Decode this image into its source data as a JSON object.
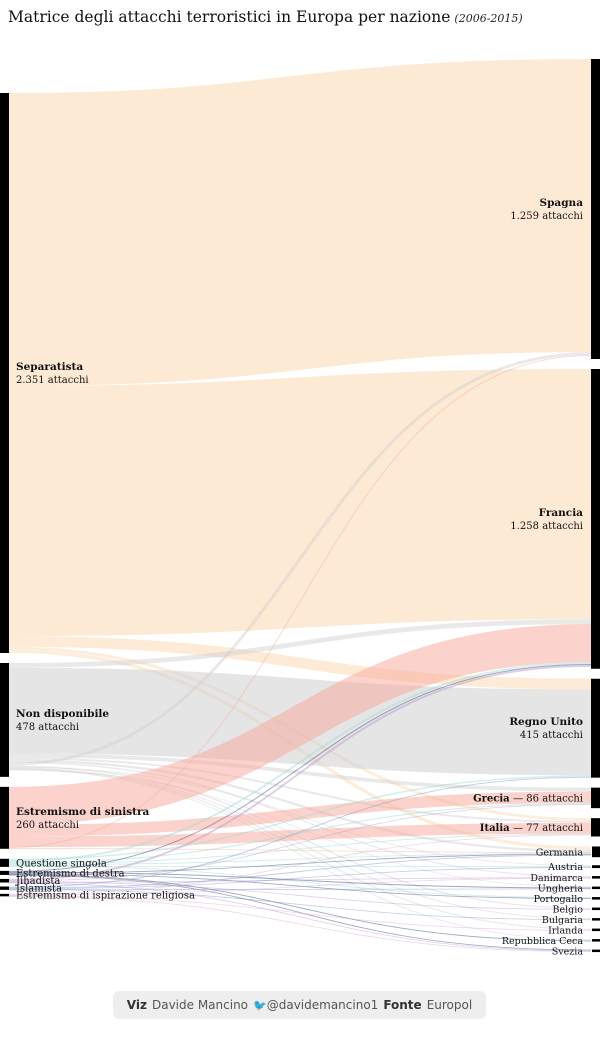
{
  "title": {
    "main": "Matrice degli attacchi terroristici in Europa per nazione",
    "sub": "(2006-2015)"
  },
  "footer": {
    "viz_label": "Viz",
    "viz_author": "Davide Mancino",
    "twitter_handle": "@davidemancino1",
    "source_label": "Fonte",
    "source_value": "Europol",
    "twitter_icon": "twitter-bird-icon"
  },
  "chart_data": {
    "type": "sankey",
    "title": "Matrice degli attacchi terroristici in Europa per nazione",
    "subtitle": "(2006-2015)",
    "value_unit": "attacchi",
    "sources": [
      {
        "name": "Separatista",
        "value": 2351,
        "label": "2.351 attacchi",
        "color": "#fbd8b0"
      },
      {
        "name": "Non disponibile",
        "value": 478,
        "label": "478 attacchi",
        "color": "#cfcfcf"
      },
      {
        "name": "Estremismo di sinistra",
        "value": 260,
        "label": "260 attacchi",
        "color": "#f7a79a"
      },
      {
        "name": "Questione singola",
        "value": 34,
        "color": "#9ed9d2"
      },
      {
        "name": "Estremismo di destra",
        "value": 17,
        "color": "#2a3d6e"
      },
      {
        "name": "Jihadista",
        "value": 15,
        "color": "#b793cc"
      },
      {
        "name": "Islamista",
        "value": 14,
        "color": "#7b8fc4"
      },
      {
        "name": "Estremismo di ispirazione religiosa",
        "value": 6,
        "color": "#d9a3cf"
      }
    ],
    "targets": [
      {
        "name": "Spagna",
        "value": 1259,
        "label": "1.259 attacchi"
      },
      {
        "name": "Francia",
        "value": 1258,
        "label": "1.258 attacchi"
      },
      {
        "name": "Regno Unito",
        "value": 415,
        "label": "415 attacchi"
      },
      {
        "name": "Grecia",
        "value": 86,
        "label": "— 86 attacchi"
      },
      {
        "name": "Italia",
        "value": 77,
        "label": "— 77 attacchi"
      },
      {
        "name": "Germania",
        "value": 45
      },
      {
        "name": "Austria",
        "value": 12
      },
      {
        "name": "Danimarca",
        "value": 10
      },
      {
        "name": "Ungheria",
        "value": 9
      },
      {
        "name": "Portogallo",
        "value": 8
      },
      {
        "name": "Belgio",
        "value": 7
      },
      {
        "name": "Bulgaria",
        "value": 6
      },
      {
        "name": "Irlanda",
        "value": 5
      },
      {
        "name": "Repubblica Ceca",
        "value": 4
      },
      {
        "name": "Svezia",
        "value": 3
      }
    ],
    "flows": [
      {
        "source": "Separatista",
        "target": "Spagna",
        "value": 1230
      },
      {
        "source": "Separatista",
        "target": "Francia",
        "value": 1050
      },
      {
        "source": "Separatista",
        "target": "Regno Unito",
        "value": 45
      },
      {
        "source": "Separatista",
        "target": "Italia",
        "value": 12
      },
      {
        "source": "Separatista",
        "target": "Germania",
        "value": 14
      },
      {
        "source": "Non disponibile",
        "target": "Francia",
        "value": 20
      },
      {
        "source": "Non disponibile",
        "target": "Regno Unito",
        "value": 360
      },
      {
        "source": "Non disponibile",
        "target": "Grecia",
        "value": 16
      },
      {
        "source": "Non disponibile",
        "target": "Italia",
        "value": 8
      },
      {
        "source": "Non disponibile",
        "target": "Germania",
        "value": 10
      },
      {
        "source": "Non disponibile",
        "target": "Danimarca",
        "value": 5
      },
      {
        "source": "Non disponibile",
        "target": "Spagna",
        "value": 12
      },
      {
        "source": "Non disponibile",
        "target": "Belgio",
        "value": 4
      },
      {
        "source": "Non disponibile",
        "target": "Austria",
        "value": 4
      },
      {
        "source": "Non disponibile",
        "target": "Bulgaria",
        "value": 3
      },
      {
        "source": "Non disponibile",
        "target": "Irlanda",
        "value": 3
      },
      {
        "source": "Non disponibile",
        "target": "Repubblica Ceca",
        "value": 2
      },
      {
        "source": "Non disponibile",
        "target": "Ungheria",
        "value": 3
      },
      {
        "source": "Estremismo di sinistra",
        "target": "Francia",
        "value": 160
      },
      {
        "source": "Estremismo di sinistra",
        "target": "Grecia",
        "value": 48
      },
      {
        "source": "Estremismo di sinistra",
        "target": "Italia",
        "value": 45
      },
      {
        "source": "Estremismo di sinistra",
        "target": "Spagna",
        "value": 4
      },
      {
        "source": "Estremismo di sinistra",
        "target": "Germania",
        "value": 3
      },
      {
        "source": "Questione singola",
        "target": "Regno Unito",
        "value": 6
      },
      {
        "source": "Questione singola",
        "target": "Francia",
        "value": 8
      },
      {
        "source": "Questione singola",
        "target": "Grecia",
        "value": 5
      },
      {
        "source": "Questione singola",
        "target": "Italia",
        "value": 4
      },
      {
        "source": "Questione singola",
        "target": "Germania",
        "value": 4
      },
      {
        "source": "Questione singola",
        "target": "Portogallo",
        "value": 3
      },
      {
        "source": "Questione singola",
        "target": "Austria",
        "value": 4
      },
      {
        "source": "Estremismo di destra",
        "target": "Francia",
        "value": 4
      },
      {
        "source": "Estremismo di destra",
        "target": "Ungheria",
        "value": 4
      },
      {
        "source": "Estremismo di destra",
        "target": "Germania",
        "value": 3
      },
      {
        "source": "Estremismo di destra",
        "target": "Portogallo",
        "value": 3
      },
      {
        "source": "Estremismo di destra",
        "target": "Repubblica Ceca",
        "value": 2
      },
      {
        "source": "Estremismo di destra",
        "target": "Svezia",
        "value": 1
      },
      {
        "source": "Jihadista",
        "target": "Francia",
        "value": 8
      },
      {
        "source": "Jihadista",
        "target": "Grecia",
        "value": 2
      },
      {
        "source": "Jihadista",
        "target": "Belgio",
        "value": 2
      },
      {
        "source": "Jihadista",
        "target": "Danimarca",
        "value": 2
      },
      {
        "source": "Jihadista",
        "target": "Svezia",
        "value": 1
      },
      {
        "source": "Islamista",
        "target": "Regno Unito",
        "value": 4
      },
      {
        "source": "Islamista",
        "target": "Germania",
        "value": 4
      },
      {
        "source": "Islamista",
        "target": "Austria",
        "value": 2
      },
      {
        "source": "Islamista",
        "target": "Bulgaria",
        "value": 2
      },
      {
        "source": "Islamista",
        "target": "Ungheria",
        "value": 2
      },
      {
        "source": "Estremismo di ispirazione religiosa",
        "target": "Italia",
        "value": 2
      },
      {
        "source": "Estremismo di ispirazione religiosa",
        "target": "Danimarca",
        "value": 2
      },
      {
        "source": "Estremismo di ispirazione religiosa",
        "target": "Irlanda",
        "value": 1
      },
      {
        "source": "Estremismo di ispirazione religiosa",
        "target": "Svezia",
        "value": 1
      }
    ]
  }
}
